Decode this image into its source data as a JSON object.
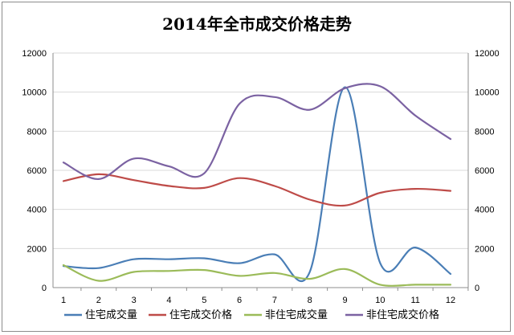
{
  "chart_data": {
    "type": "line",
    "title": "2014年全市成交价格走势",
    "xlabel": "",
    "ylabel": "",
    "categories": [
      "1",
      "2",
      "3",
      "4",
      "5",
      "6",
      "7",
      "8",
      "9",
      "10",
      "11",
      "12"
    ],
    "ylim": [
      0,
      12000
    ],
    "y_ticks": [
      "0",
      "2000",
      "4000",
      "6000",
      "8000",
      "10000",
      "12000"
    ],
    "y_right_ticks": [
      "0",
      "2000",
      "4000",
      "6000",
      "8000",
      "10000",
      "12000"
    ],
    "grid": "horizontal",
    "legend_position": "bottom",
    "smooth": true,
    "series": [
      {
        "name": "住宅成交量",
        "color": "#4a7eb6",
        "axis": "left",
        "values": [
          1100,
          1000,
          1450,
          1450,
          1500,
          1250,
          1700,
          800,
          10250,
          1250,
          2050,
          700
        ]
      },
      {
        "name": "住宅成交价格",
        "color": "#be4b48",
        "axis": "left",
        "values": [
          5450,
          5800,
          5500,
          5200,
          5100,
          5600,
          5200,
          4500,
          4200,
          4850,
          5050,
          4950
        ]
      },
      {
        "name": "非住宅成交量",
        "color": "#9bbb59",
        "axis": "right",
        "values": [
          1150,
          350,
          800,
          850,
          900,
          600,
          750,
          450,
          950,
          150,
          150,
          150
        ]
      },
      {
        "name": "非住宅成交价格",
        "color": "#7b62a2",
        "axis": "right",
        "values": [
          6400,
          5550,
          6600,
          6200,
          5850,
          9400,
          9750,
          9100,
          10200,
          10300,
          8800,
          7600
        ]
      }
    ]
  }
}
